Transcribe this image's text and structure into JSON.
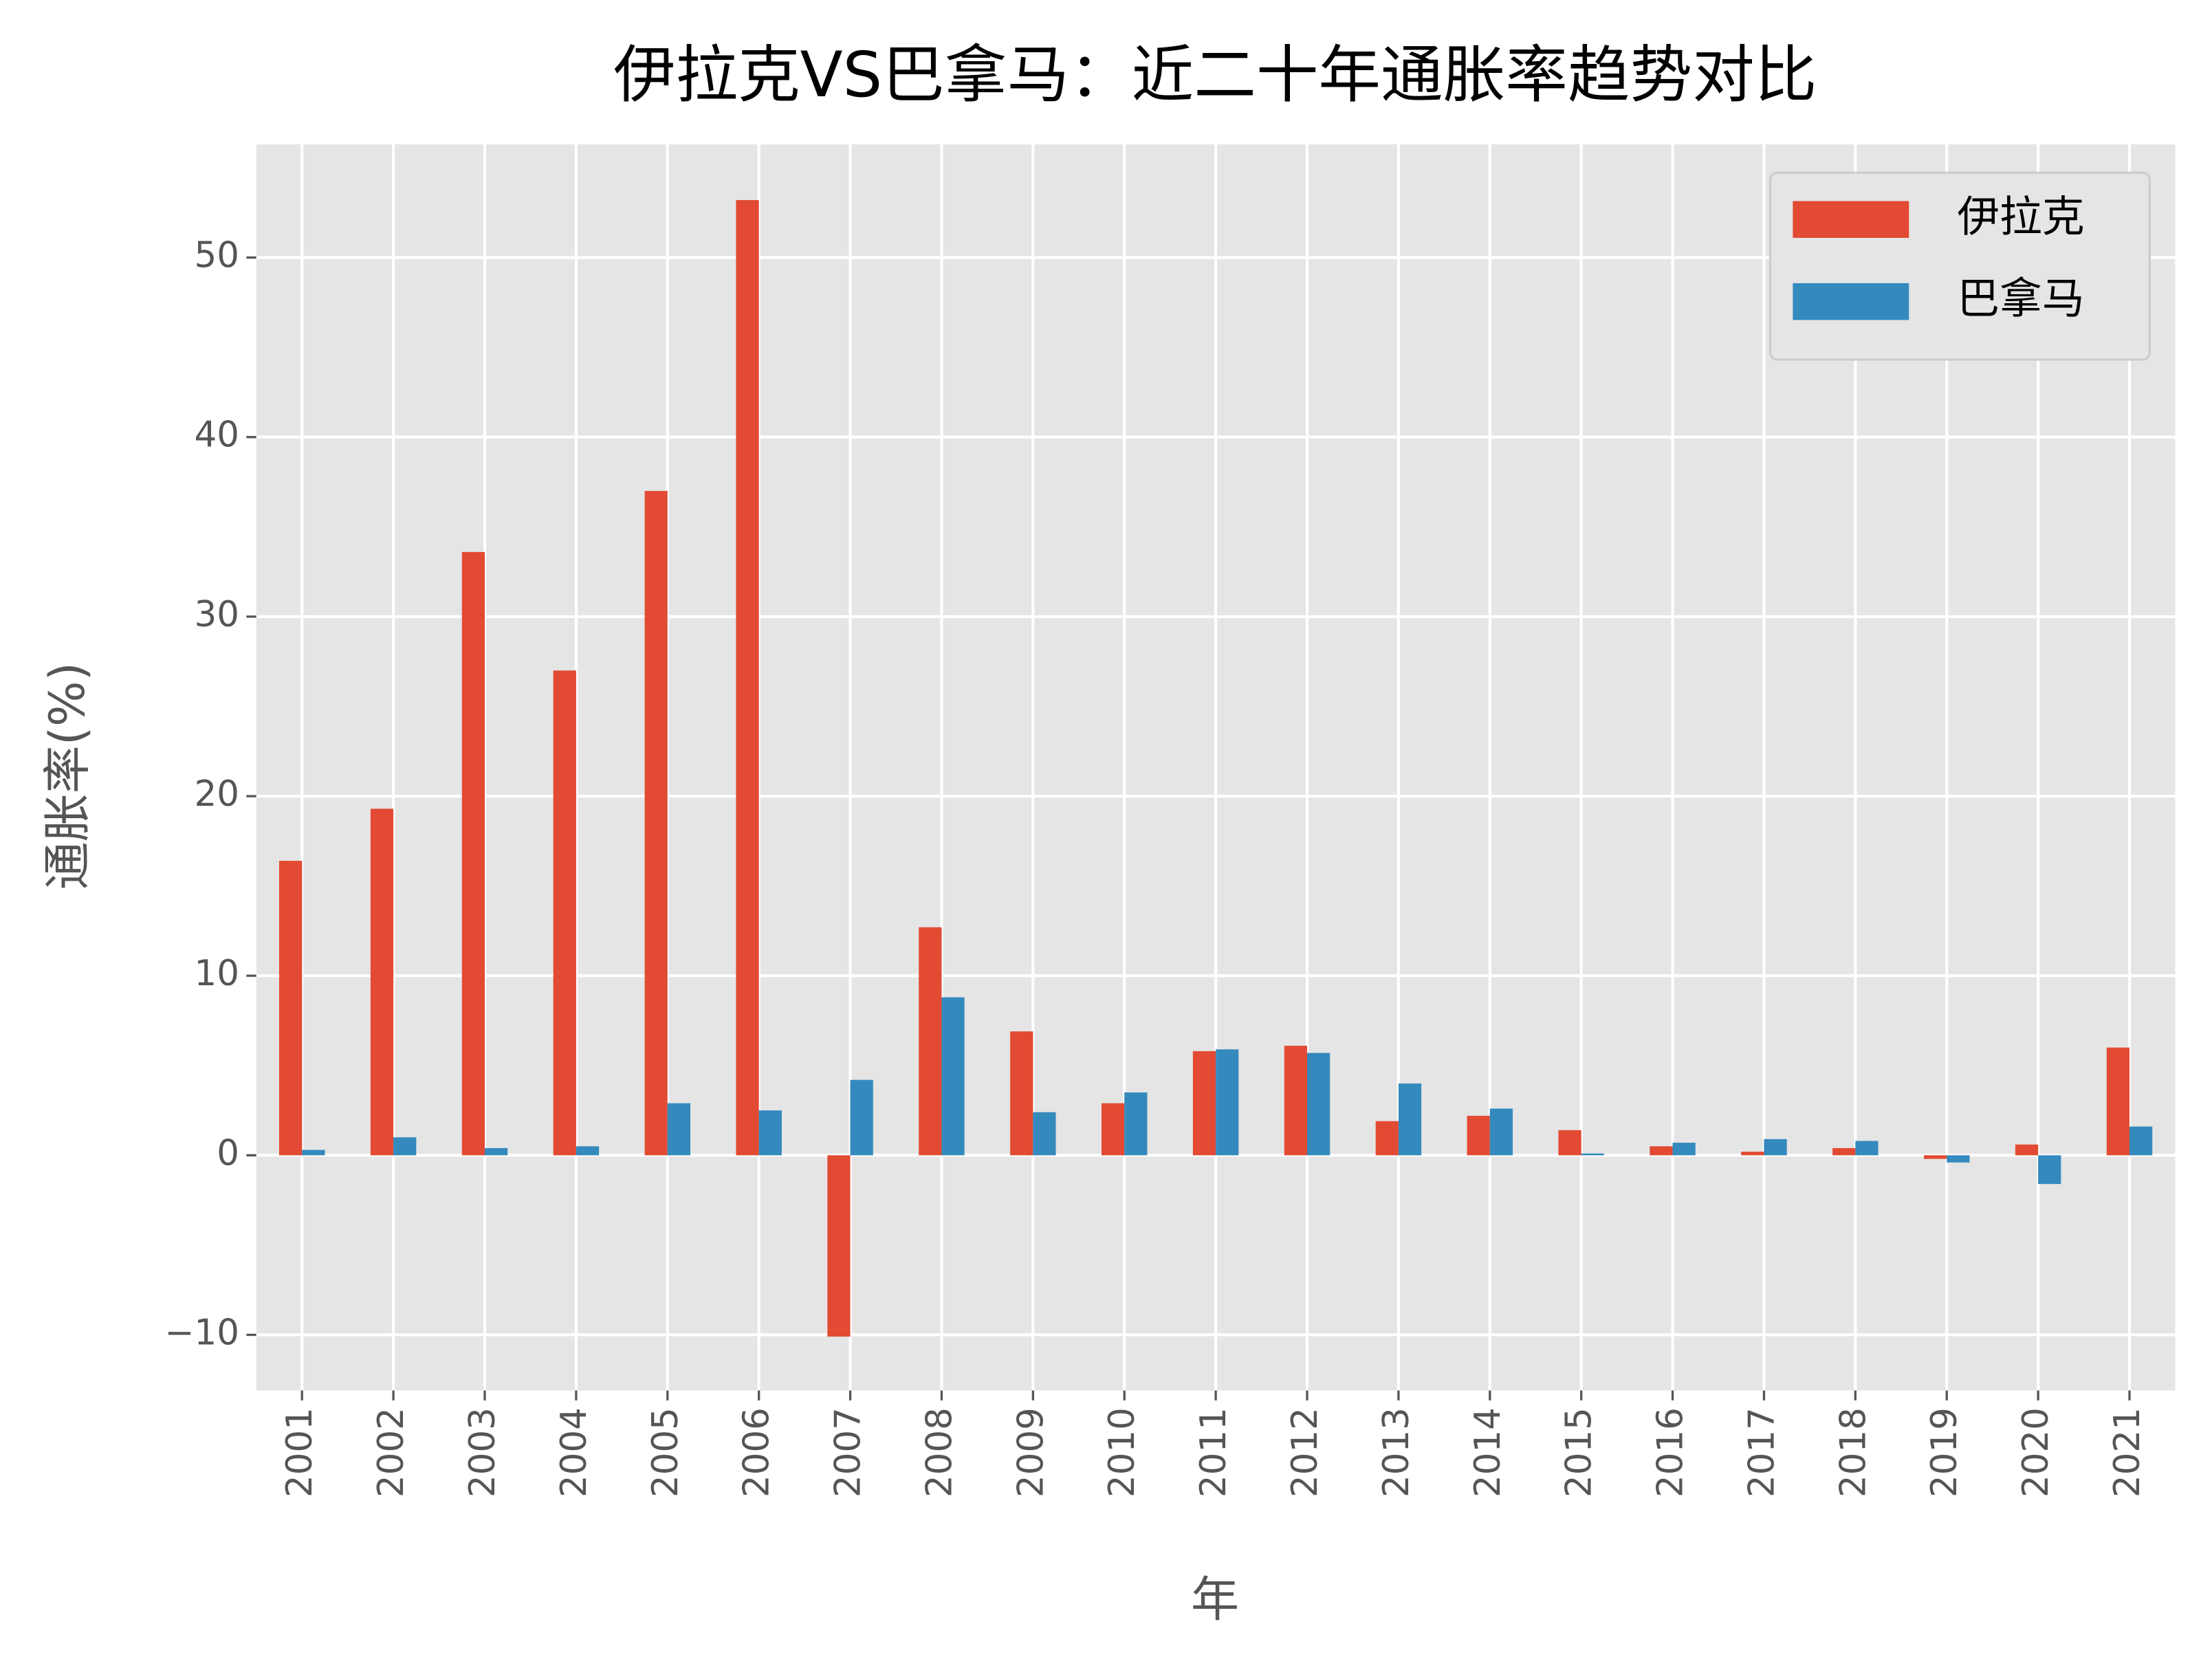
{
  "chart_data": {
    "type": "bar",
    "title": "伊拉克VS巴拿马：近二十年通胀率趋势对比",
    "x_label": "年",
    "y_label": "通胀率(%)",
    "categories": [
      "2001",
      "2002",
      "2003",
      "2004",
      "2005",
      "2006",
      "2007",
      "2008",
      "2009",
      "2010",
      "2011",
      "2012",
      "2013",
      "2014",
      "2015",
      "2016",
      "2017",
      "2018",
      "2019",
      "2020",
      "2021"
    ],
    "series": [
      {
        "name": "伊拉克",
        "color": "#e24a33",
        "values": [
          16.4,
          19.3,
          33.6,
          27.0,
          37.0,
          53.2,
          -10.1,
          12.7,
          6.9,
          2.9,
          5.8,
          6.1,
          1.9,
          2.2,
          1.4,
          0.5,
          0.2,
          0.4,
          -0.2,
          0.6,
          6.0
        ]
      },
      {
        "name": "巴拿马",
        "color": "#348abd",
        "values": [
          0.3,
          1.0,
          0.4,
          0.5,
          2.9,
          2.5,
          4.2,
          8.8,
          2.4,
          3.5,
          5.9,
          5.7,
          4.0,
          2.6,
          0.1,
          0.7,
          0.9,
          0.8,
          -0.4,
          -1.6,
          1.6
        ]
      }
    ],
    "ylim": [
      -13.1,
      56.3
    ],
    "yticks": [
      {
        "value": -10,
        "label": "−10"
      },
      0,
      10,
      20,
      30,
      40,
      50
    ],
    "grid": true,
    "legend": "upper right"
  }
}
